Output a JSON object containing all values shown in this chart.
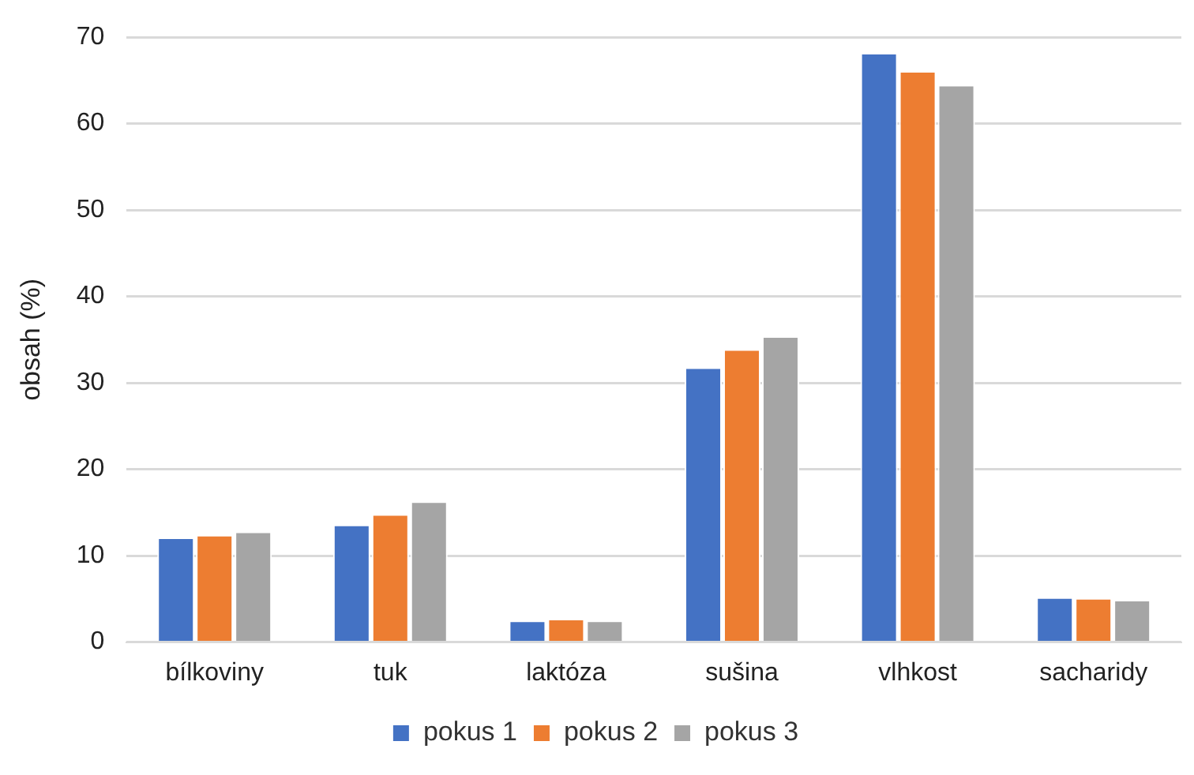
{
  "chart_data": {
    "type": "bar",
    "ylabel": "obsah (%)",
    "categories": [
      "bílkoviny",
      "tuk",
      "laktóza",
      "sušina",
      "vlhkost",
      "sacharidy"
    ],
    "series": [
      {
        "name": "pokus 1",
        "color": "#4472c4",
        "values": [
          12.1,
          13.6,
          2.5,
          31.8,
          68.2,
          5.2
        ]
      },
      {
        "name": "pokus 2",
        "color": "#ed7d31",
        "values": [
          12.4,
          14.8,
          2.7,
          33.9,
          66.1,
          5.1
        ]
      },
      {
        "name": "pokus 3",
        "color": "#a5a5a5",
        "values": [
          12.8,
          16.3,
          2.5,
          35.4,
          64.5,
          4.9
        ]
      }
    ],
    "ylim": [
      0,
      70
    ],
    "yticks": [
      0,
      10,
      20,
      30,
      40,
      50,
      60,
      70
    ],
    "grid": "y",
    "legend": "bottom"
  }
}
